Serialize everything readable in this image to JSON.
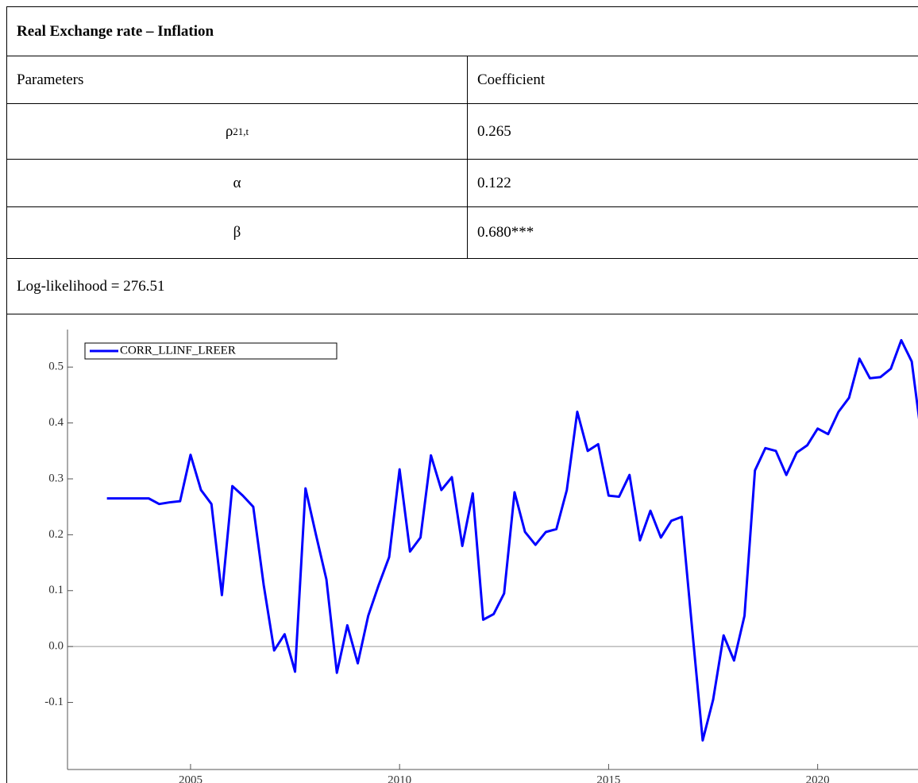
{
  "table": {
    "title": "Real Exchange rate – Inflation",
    "header": [
      "Parameters",
      "Coefficient"
    ],
    "rows": [
      {
        "parameter": "ρ",
        "subscript": "21,t",
        "coefficient": "0.265"
      },
      {
        "parameter": "α",
        "coefficient": "0.122"
      },
      {
        "parameter": "β",
        "coefficient": "0.680***"
      }
    ],
    "footer": "Log-likelihood = 276.51"
  },
  "chart_data": {
    "type": "line",
    "x": [
      2003,
      2003.25,
      2003.5,
      2003.75,
      2004,
      2004.25,
      2004.5,
      2004.75,
      2005,
      2005.25,
      2005.5,
      2005.75,
      2006,
      2006.25,
      2006.5,
      2006.75,
      2007,
      2007.25,
      2007.5,
      2007.75,
      2008,
      2008.25,
      2008.5,
      2008.75,
      2009,
      2009.25,
      2009.5,
      2009.75,
      2010,
      2010.25,
      2010.5,
      2010.75,
      2011,
      2011.25,
      2011.5,
      2011.75,
      2012,
      2012.25,
      2012.5,
      2012.75,
      2013,
      2013.25,
      2013.5,
      2013.75,
      2014,
      2014.25,
      2014.5,
      2014.75,
      2015,
      2015.25,
      2015.5,
      2015.75,
      2016,
      2016.25,
      2016.5,
      2016.75,
      2017,
      2017.25,
      2017.5,
      2017.75,
      2018,
      2018.25,
      2018.5,
      2018.75,
      2019,
      2019.25,
      2019.5,
      2019.75,
      2020,
      2020.25,
      2020.5,
      2020.75,
      2021,
      2021.25,
      2021.5,
      2021.75,
      2022,
      2022.25,
      2022.5
    ],
    "series": [
      {
        "name": "CORR_LLINF_LREER",
        "color": "#0000ff",
        "values": [
          0.265,
          0.265,
          0.265,
          0.265,
          0.265,
          0.255,
          0.258,
          0.26,
          0.343,
          0.28,
          0.255,
          0.092,
          0.287,
          0.27,
          0.25,
          0.11,
          -0.007,
          0.022,
          -0.045,
          0.283,
          0.2,
          0.12,
          -0.047,
          0.038,
          -0.03,
          0.055,
          0.11,
          0.16,
          0.317,
          0.17,
          0.195,
          0.342,
          0.28,
          0.303,
          0.18,
          0.274,
          0.048,
          0.058,
          0.095,
          0.276,
          0.205,
          0.182,
          0.205,
          0.21,
          0.28,
          0.42,
          0.35,
          0.362,
          0.27,
          0.268,
          0.307,
          0.19,
          0.243,
          0.195,
          0.225,
          0.232,
          0.03,
          -0.168,
          -0.095,
          0.02,
          -0.025,
          0.055,
          0.315,
          0.355,
          0.35,
          0.307,
          0.347,
          0.36,
          0.39,
          0.38,
          0.42,
          0.445,
          0.515,
          0.48,
          0.482,
          0.497,
          0.548,
          0.51,
          0.365
        ]
      }
    ],
    "xlim": [
      2002,
      2022.4
    ],
    "xticks": [
      2005,
      2010,
      2015,
      2020
    ],
    "ylim": [
      -0.22,
      0.56
    ],
    "yticks": [
      -0.1,
      {
        "value": 0,
        "label": "0.0"
      },
      0.1,
      0.2,
      0.3,
      0.4,
      0.5
    ],
    "legend": "upper left"
  }
}
